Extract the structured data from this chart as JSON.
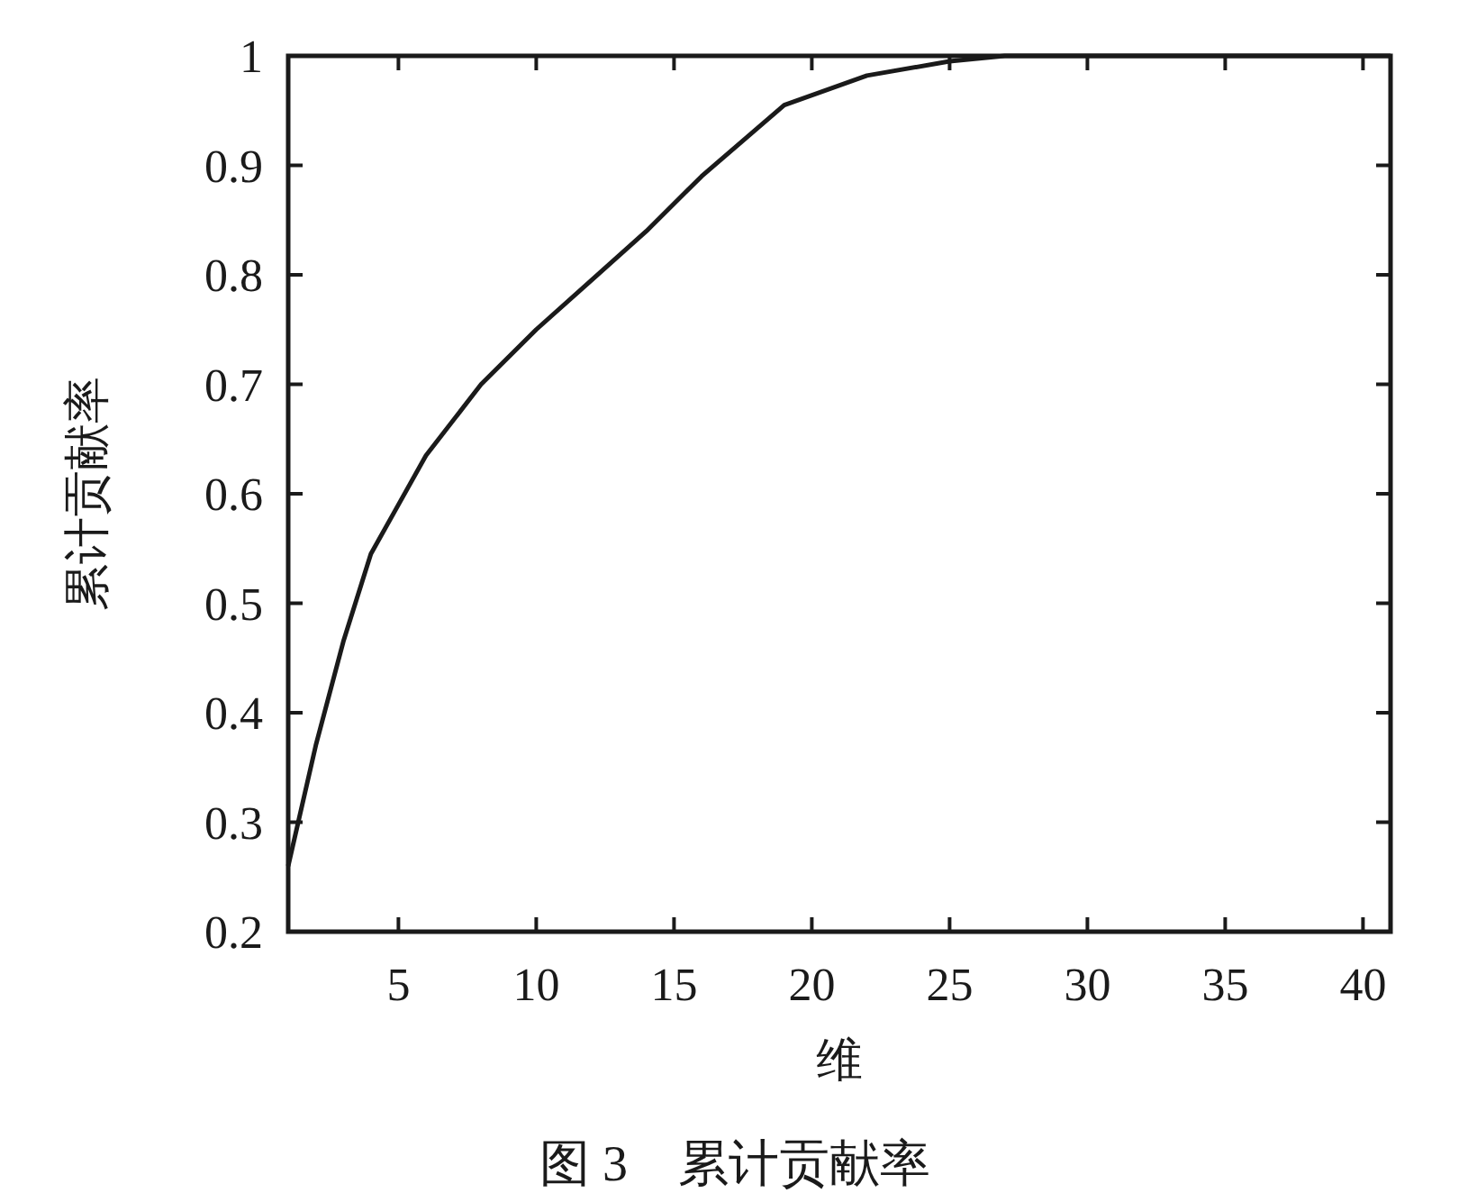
{
  "chart_data": {
    "type": "line",
    "title": "图 3　累计贡献率",
    "xlabel": "维",
    "ylabel": "累计贡献率",
    "x": [
      1,
      2,
      3,
      4,
      5,
      6,
      8,
      10,
      12,
      14,
      16,
      19,
      22,
      25,
      27,
      30,
      35,
      41
    ],
    "series": [
      {
        "color": "#1a1a1a",
        "values": [
          0.26,
          0.37,
          0.465,
          0.545,
          0.59,
          0.635,
          0.7,
          0.75,
          0.795,
          0.84,
          0.89,
          0.955,
          0.982,
          0.995,
          1,
          1,
          1,
          1
        ]
      }
    ],
    "xlim": [
      1,
      41
    ],
    "ylim": [
      0.2,
      1
    ],
    "xticks": [
      5,
      10,
      15,
      20,
      25,
      30,
      35,
      40
    ],
    "yticks": [
      0.2,
      0.3,
      0.4,
      0.5,
      0.6,
      0.7,
      0.8,
      0.9,
      1
    ],
    "grid": false,
    "marker": "none",
    "line_style": "solid"
  }
}
